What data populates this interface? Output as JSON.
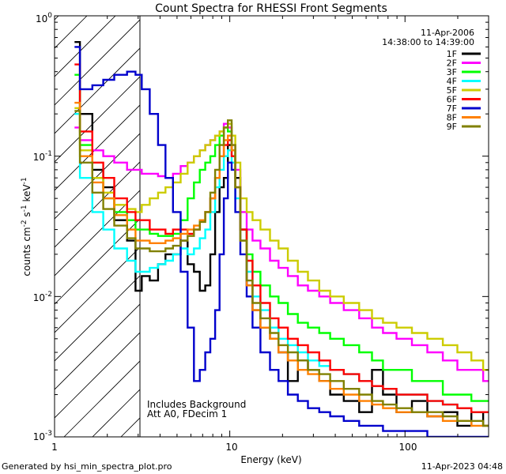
{
  "chart_data": {
    "type": "line",
    "title": "Count Spectra for RHESSI Front Segments",
    "xlabel": "Energy (keV)",
    "ylabel": "counts cm^-2 s^-1 keV^-1",
    "xscale": "log",
    "yscale": "log",
    "xlim": [
      1,
      300
    ],
    "ylim": [
      0.001,
      1
    ],
    "x_ticks": [
      "1",
      "10",
      "100"
    ],
    "y_ticks": [
      "10^-3",
      "10^-2",
      "10^-1",
      "10^0"
    ],
    "date": "11-Apr-2006",
    "time_range": "14:38:00 to 14:39:00",
    "hatched_region_keV": [
      1,
      3
    ],
    "annotations": [
      "Includes Background",
      "Att A0, FDecim 1"
    ],
    "footer_left": "Generated by hsi_min_spectra_plot.pro",
    "footer_right": "11-Apr-2023 04:48",
    "series": [
      {
        "name": "1F",
        "color": "#000000",
        "x": [
          1.3,
          1.5,
          1.8,
          2.0,
          2.4,
          2.8,
          3.0,
          3.3,
          3.7,
          4.1,
          4.5,
          5.0,
          5.5,
          6.0,
          6.5,
          7.0,
          7.5,
          8.0,
          8.5,
          9.0,
          9.5,
          10.0,
          10.5,
          11.0,
          12.0,
          13.0,
          14.0,
          16.0,
          18.0,
          20.0,
          23.0,
          26.0,
          30.0,
          35.0,
          40.0,
          50.0,
          60.0,
          70.0,
          80.0,
          100.0,
          120.0,
          150.0,
          180.0,
          220.0,
          260.0,
          300.0
        ],
        "y": [
          0.65,
          0.2,
          0.08,
          0.06,
          0.035,
          0.025,
          0.011,
          0.014,
          0.013,
          0.017,
          0.02,
          0.02,
          0.025,
          0.017,
          0.015,
          0.011,
          0.012,
          0.02,
          0.04,
          0.06,
          0.07,
          0.12,
          0.11,
          0.07,
          0.03,
          0.012,
          0.008,
          0.006,
          0.005,
          0.004,
          0.0025,
          0.0035,
          0.003,
          0.0025,
          0.002,
          0.0018,
          0.0015,
          0.003,
          0.002,
          0.0015,
          0.0018,
          0.0014,
          0.0015,
          0.0012,
          0.0015,
          0.0012
        ]
      },
      {
        "name": "2F",
        "color": "#ff00ff",
        "x": [
          1.3,
          1.5,
          1.8,
          2.0,
          2.4,
          2.8,
          3.0,
          3.3,
          3.7,
          4.1,
          4.5,
          5.0,
          5.5,
          6.0,
          6.5,
          7.0,
          7.5,
          8.0,
          8.5,
          9.0,
          9.5,
          10.0,
          10.5,
          11.0,
          12.0,
          13.0,
          14.0,
          16.0,
          18.0,
          20.0,
          23.0,
          26.0,
          30.0,
          35.0,
          40.0,
          50.0,
          60.0,
          70.0,
          80.0,
          100.0,
          120.0,
          150.0,
          180.0,
          220.0,
          260.0,
          300.0
        ],
        "y": [
          0.16,
          0.13,
          0.11,
          0.1,
          0.09,
          0.08,
          0.08,
          0.075,
          0.075,
          0.072,
          0.07,
          0.075,
          0.085,
          0.09,
          0.1,
          0.11,
          0.12,
          0.13,
          0.14,
          0.15,
          0.17,
          0.16,
          0.12,
          0.08,
          0.04,
          0.03,
          0.025,
          0.022,
          0.018,
          0.016,
          0.014,
          0.012,
          0.011,
          0.01,
          0.009,
          0.008,
          0.007,
          0.006,
          0.0055,
          0.005,
          0.0045,
          0.004,
          0.0035,
          0.003,
          0.003,
          0.0025
        ]
      },
      {
        "name": "3F",
        "color": "#00ff00",
        "x": [
          1.3,
          1.5,
          1.8,
          2.0,
          2.4,
          2.8,
          3.0,
          3.3,
          3.7,
          4.1,
          4.5,
          5.0,
          5.5,
          6.0,
          6.5,
          7.0,
          7.5,
          8.0,
          8.5,
          9.0,
          9.5,
          10.0,
          10.5,
          11.0,
          12.0,
          13.0,
          14.0,
          16.0,
          18.0,
          20.0,
          23.0,
          26.0,
          30.0,
          35.0,
          40.0,
          50.0,
          60.0,
          70.0,
          80.0,
          100.0,
          120.0,
          150.0,
          180.0,
          220.0,
          260.0,
          300.0
        ],
        "y": [
          0.38,
          0.12,
          0.07,
          0.05,
          0.04,
          0.035,
          0.03,
          0.03,
          0.028,
          0.027,
          0.027,
          0.028,
          0.035,
          0.05,
          0.065,
          0.08,
          0.09,
          0.1,
          0.12,
          0.14,
          0.16,
          0.15,
          0.11,
          0.06,
          0.03,
          0.02,
          0.015,
          0.012,
          0.01,
          0.009,
          0.0075,
          0.0065,
          0.006,
          0.0055,
          0.005,
          0.0045,
          0.004,
          0.0035,
          0.003,
          0.003,
          0.0025,
          0.0025,
          0.002,
          0.002,
          0.0018,
          0.0018
        ]
      },
      {
        "name": "4F",
        "color": "#00ffff",
        "x": [
          1.3,
          1.5,
          1.8,
          2.0,
          2.4,
          2.8,
          3.0,
          3.3,
          3.7,
          4.1,
          4.5,
          5.0,
          5.5,
          6.0,
          6.5,
          7.0,
          7.5,
          8.0,
          8.5,
          9.0,
          9.5,
          10.0,
          10.5,
          11.0,
          12.0,
          13.0,
          14.0,
          16.0,
          18.0,
          20.0,
          23.0,
          26.0,
          30.0,
          35.0,
          40.0,
          50.0,
          60.0,
          70.0,
          80.0,
          100.0,
          120.0,
          150.0,
          180.0,
          220.0,
          260.0,
          300.0
        ],
        "y": [
          0.2,
          0.07,
          0.04,
          0.03,
          0.022,
          0.018,
          0.015,
          0.015,
          0.016,
          0.017,
          0.018,
          0.02,
          0.022,
          0.02,
          0.022,
          0.026,
          0.03,
          0.04,
          0.06,
          0.08,
          0.1,
          0.11,
          0.09,
          0.05,
          0.025,
          0.015,
          0.01,
          0.008,
          0.006,
          0.005,
          0.0045,
          0.004,
          0.0035,
          0.0032,
          0.003,
          0.0028,
          0.0025,
          0.0023,
          0.0022,
          0.002,
          0.002,
          0.0018,
          0.0017,
          0.0016,
          0.0015,
          0.0015
        ]
      },
      {
        "name": "5F",
        "color": "#cccc00",
        "x": [
          1.3,
          1.5,
          1.8,
          2.0,
          2.4,
          2.8,
          3.0,
          3.3,
          3.7,
          4.1,
          4.5,
          5.0,
          5.5,
          6.0,
          6.5,
          7.0,
          7.5,
          8.0,
          8.5,
          9.0,
          9.5,
          10.0,
          10.5,
          11.0,
          12.0,
          13.0,
          14.0,
          16.0,
          18.0,
          20.0,
          23.0,
          26.0,
          30.0,
          35.0,
          40.0,
          50.0,
          60.0,
          70.0,
          80.0,
          100.0,
          120.0,
          150.0,
          180.0,
          220.0,
          260.0,
          300.0
        ],
        "y": [
          0.22,
          0.11,
          0.07,
          0.055,
          0.045,
          0.042,
          0.04,
          0.045,
          0.05,
          0.055,
          0.06,
          0.065,
          0.075,
          0.09,
          0.1,
          0.11,
          0.12,
          0.13,
          0.14,
          0.15,
          0.16,
          0.17,
          0.14,
          0.09,
          0.05,
          0.04,
          0.035,
          0.03,
          0.025,
          0.022,
          0.018,
          0.015,
          0.013,
          0.011,
          0.01,
          0.009,
          0.008,
          0.007,
          0.0065,
          0.006,
          0.0055,
          0.005,
          0.0045,
          0.004,
          0.0035,
          0.003
        ]
      },
      {
        "name": "6F",
        "color": "#ff0000",
        "x": [
          1.3,
          1.5,
          1.8,
          2.0,
          2.4,
          2.8,
          3.0,
          3.3,
          3.7,
          4.1,
          4.5,
          5.0,
          5.5,
          6.0,
          6.5,
          7.0,
          7.5,
          8.0,
          8.5,
          9.0,
          9.5,
          10.0,
          10.5,
          11.0,
          12.0,
          13.0,
          14.0,
          16.0,
          18.0,
          20.0,
          23.0,
          26.0,
          30.0,
          35.0,
          40.0,
          50.0,
          60.0,
          70.0,
          80.0,
          100.0,
          120.0,
          150.0,
          180.0,
          220.0,
          260.0,
          300.0
        ],
        "y": [
          0.45,
          0.15,
          0.09,
          0.07,
          0.05,
          0.04,
          0.035,
          0.035,
          0.03,
          0.03,
          0.028,
          0.03,
          0.03,
          0.028,
          0.03,
          0.035,
          0.04,
          0.05,
          0.07,
          0.1,
          0.12,
          0.13,
          0.1,
          0.06,
          0.03,
          0.018,
          0.012,
          0.009,
          0.007,
          0.006,
          0.005,
          0.0045,
          0.004,
          0.0035,
          0.003,
          0.0028,
          0.0025,
          0.0023,
          0.0022,
          0.002,
          0.002,
          0.0018,
          0.0017,
          0.0016,
          0.0015,
          0.0015
        ]
      },
      {
        "name": "7F",
        "color": "#0000cc",
        "x": [
          1.3,
          1.5,
          1.8,
          2.0,
          2.4,
          2.8,
          3.0,
          3.3,
          3.7,
          4.1,
          4.5,
          5.0,
          5.5,
          6.0,
          6.5,
          7.0,
          7.5,
          8.0,
          8.5,
          9.0,
          9.5,
          10.0,
          10.5,
          11.0,
          12.0,
          13.0,
          14.0,
          16.0,
          18.0,
          20.0,
          23.0,
          26.0,
          30.0,
          35.0,
          40.0,
          50.0,
          60.0,
          70.0,
          80.0,
          100.0,
          120.0,
          150.0,
          180.0,
          220.0,
          260.0,
          300.0
        ],
        "y": [
          0.6,
          0.3,
          0.32,
          0.35,
          0.38,
          0.4,
          0.38,
          0.3,
          0.2,
          0.12,
          0.07,
          0.04,
          0.015,
          0.006,
          0.0025,
          0.003,
          0.004,
          0.005,
          0.008,
          0.02,
          0.05,
          0.09,
          0.08,
          0.04,
          0.02,
          0.01,
          0.006,
          0.004,
          0.003,
          0.0025,
          0.002,
          0.0018,
          0.0016,
          0.0015,
          0.0014,
          0.0013,
          0.0012,
          0.0012,
          0.0011,
          0.0011,
          0.0011,
          0.001,
          0.001,
          0.001,
          0.001,
          0.001
        ]
      },
      {
        "name": "8F",
        "color": "#ff8000",
        "x": [
          1.3,
          1.5,
          1.8,
          2.0,
          2.4,
          2.8,
          3.0,
          3.3,
          3.7,
          4.1,
          4.5,
          5.0,
          5.5,
          6.0,
          6.5,
          7.0,
          7.5,
          8.0,
          8.5,
          9.0,
          9.5,
          10.0,
          10.5,
          11.0,
          12.0,
          13.0,
          14.0,
          16.0,
          18.0,
          20.0,
          23.0,
          26.0,
          30.0,
          35.0,
          40.0,
          50.0,
          60.0,
          70.0,
          80.0,
          100.0,
          120.0,
          150.0,
          180.0,
          220.0,
          260.0,
          300.0
        ],
        "y": [
          0.24,
          0.1,
          0.065,
          0.05,
          0.038,
          0.03,
          0.025,
          0.025,
          0.024,
          0.024,
          0.025,
          0.026,
          0.028,
          0.03,
          0.032,
          0.035,
          0.04,
          0.05,
          0.07,
          0.1,
          0.13,
          0.14,
          0.11,
          0.06,
          0.025,
          0.012,
          0.008,
          0.006,
          0.005,
          0.004,
          0.0035,
          0.003,
          0.0028,
          0.0025,
          0.0022,
          0.002,
          0.0018,
          0.0017,
          0.0016,
          0.0015,
          0.0015,
          0.0014,
          0.0013,
          0.0013,
          0.0012,
          0.0012
        ]
      },
      {
        "name": "9F",
        "color": "#808000",
        "x": [
          1.3,
          1.5,
          1.8,
          2.0,
          2.4,
          2.8,
          3.0,
          3.3,
          3.7,
          4.1,
          4.5,
          5.0,
          5.5,
          6.0,
          6.5,
          7.0,
          7.5,
          8.0,
          8.5,
          9.0,
          9.5,
          10.0,
          10.5,
          11.0,
          12.0,
          13.0,
          14.0,
          16.0,
          18.0,
          20.0,
          23.0,
          26.0,
          30.0,
          35.0,
          40.0,
          50.0,
          60.0,
          70.0,
          80.0,
          100.0,
          120.0,
          150.0,
          180.0,
          220.0,
          260.0,
          300.0
        ],
        "y": [
          0.21,
          0.09,
          0.055,
          0.042,
          0.032,
          0.026,
          0.022,
          0.022,
          0.021,
          0.021,
          0.022,
          0.023,
          0.025,
          0.027,
          0.03,
          0.034,
          0.04,
          0.055,
          0.08,
          0.12,
          0.16,
          0.18,
          0.12,
          0.06,
          0.025,
          0.013,
          0.009,
          0.007,
          0.0055,
          0.0045,
          0.004,
          0.0035,
          0.003,
          0.0028,
          0.0025,
          0.0022,
          0.002,
          0.0018,
          0.0017,
          0.0016,
          0.0015,
          0.0015,
          0.0014,
          0.0013,
          0.0013,
          0.0012
        ]
      }
    ]
  }
}
